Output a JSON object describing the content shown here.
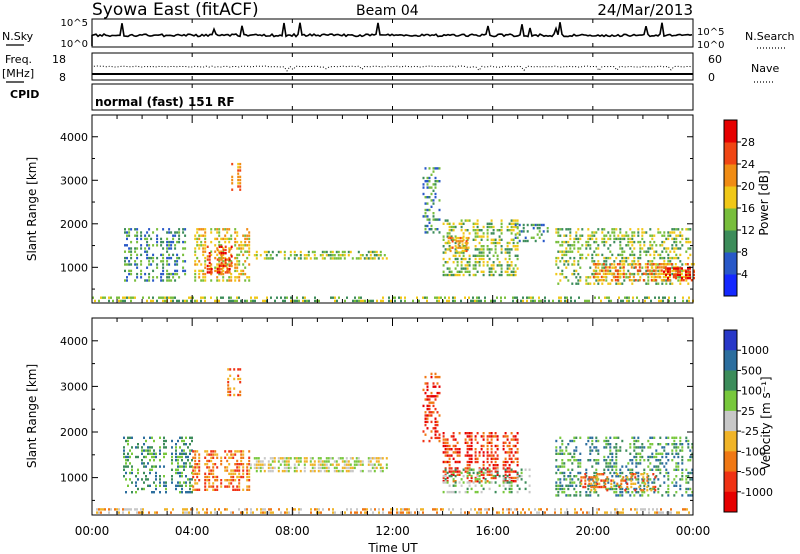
{
  "header": {
    "station": "Syowa East (fitACF)",
    "beam": "Beam 04",
    "date": "24/Mar/2013"
  },
  "status_panels": {
    "nsky_label": "N.Sky",
    "nsky_ticks": [
      "10^5",
      "10^0"
    ],
    "nsearch_label": "N.Search",
    "nsearch_ticks": [
      "10^5",
      "10^0"
    ],
    "freq_label": "Freq.",
    "freq_unit": "[MHz]",
    "freq_ticks": [
      "18",
      "8"
    ],
    "nave_label": "Nave",
    "nave_ticks": [
      "60",
      "0"
    ],
    "cpid_label": "CPID",
    "cpid_text": "normal (fast) 151 RF"
  },
  "x_axis": {
    "label": "Time UT",
    "ticks": [
      "00:00",
      "04:00",
      "08:00",
      "12:00",
      "16:00",
      "20:00",
      "00:00"
    ]
  },
  "chart_data": [
    {
      "type": "heatmap",
      "panel": "power",
      "ylabel": "Slant Range [km]",
      "yticks": [
        1000,
        2000,
        3000,
        4000
      ],
      "ylim": [
        180,
        4500
      ],
      "xlim": [
        0,
        24
      ],
      "colorbar": {
        "label": "Power [dB]",
        "ticks": [
          "4",
          "8",
          "12",
          "16",
          "20",
          "24",
          "28"
        ],
        "colors": [
          "#1428ff",
          "#2858c8",
          "#3c8c5a",
          "#78be3c",
          "#f0c818",
          "#f08c14",
          "#f04614",
          "#e60000"
        ]
      },
      "regions": [
        {
          "t0": 0.0,
          "t1": 24.0,
          "r0": 190,
          "r1": 330,
          "level": 3,
          "density": 0.55
        },
        {
          "t0": 1.2,
          "t1": 3.8,
          "r0": 700,
          "r1": 1900,
          "level": 2,
          "density": 0.45
        },
        {
          "t0": 4.0,
          "t1": 6.3,
          "r0": 700,
          "r1": 1900,
          "level": 4,
          "density": 0.55
        },
        {
          "t0": 4.5,
          "t1": 5.6,
          "r0": 900,
          "r1": 1500,
          "level": 6,
          "density": 0.6
        },
        {
          "t0": 5.4,
          "t1": 5.9,
          "r0": 2800,
          "r1": 3400,
          "level": 5,
          "density": 0.7
        },
        {
          "t0": 6.3,
          "t1": 11.8,
          "r0": 1180,
          "r1": 1380,
          "level": 3,
          "density": 0.6
        },
        {
          "t0": 13.2,
          "t1": 13.9,
          "r0": 1800,
          "r1": 3300,
          "level": 2,
          "density": 0.3
        },
        {
          "t0": 14.0,
          "t1": 17.0,
          "r0": 800,
          "r1": 2100,
          "level": 3,
          "density": 0.5
        },
        {
          "t0": 14.2,
          "t1": 15.0,
          "r0": 1400,
          "r1": 1700,
          "level": 5,
          "density": 0.55
        },
        {
          "t0": 16.8,
          "t1": 18.3,
          "r0": 1600,
          "r1": 2000,
          "level": 2,
          "density": 0.35
        },
        {
          "t0": 18.5,
          "t1": 24.0,
          "r0": 600,
          "r1": 1900,
          "level": 3,
          "density": 0.45
        },
        {
          "t0": 20.0,
          "t1": 24.0,
          "r0": 700,
          "r1": 1100,
          "level": 5,
          "density": 0.5
        },
        {
          "t0": 22.8,
          "t1": 24.0,
          "r0": 750,
          "r1": 1000,
          "level": 7,
          "density": 0.6
        }
      ]
    },
    {
      "type": "heatmap",
      "panel": "velocity",
      "ylabel": "Slant Range [km]",
      "yticks": [
        1000,
        2000,
        3000,
        4000
      ],
      "ylim": [
        180,
        4500
      ],
      "xlim": [
        0,
        24
      ],
      "colorbar": {
        "label": "Velocity [m s⁻¹]",
        "ticks": [
          "1000",
          "500",
          "100",
          "25",
          "-25",
          "-100",
          "-500",
          "-1000"
        ],
        "colors": [
          "#2838c8",
          "#2c6e9e",
          "#3c8c5a",
          "#78c83c",
          "#c8c8c8",
          "#f0b428",
          "#f07814",
          "#f03214",
          "#e60000"
        ]
      },
      "regions": [
        {
          "t0": 0.0,
          "t1": 24.0,
          "r0": 190,
          "r1": 330,
          "level": 5,
          "density": 0.5
        },
        {
          "t0": 1.0,
          "t1": 4.0,
          "r0": 700,
          "r1": 1900,
          "level": 2,
          "density": 0.45
        },
        {
          "t0": 4.0,
          "t1": 6.3,
          "r0": 700,
          "r1": 1600,
          "level": 6,
          "density": 0.6
        },
        {
          "t0": 5.4,
          "t1": 5.9,
          "r0": 2800,
          "r1": 3400,
          "level": 6,
          "density": 0.6
        },
        {
          "t0": 6.3,
          "t1": 11.8,
          "r0": 1150,
          "r1": 1450,
          "level": 4,
          "density": 0.7
        },
        {
          "t0": 13.2,
          "t1": 13.9,
          "r0": 1800,
          "r1": 3300,
          "level": 7,
          "density": 0.35
        },
        {
          "t0": 14.0,
          "t1": 17.0,
          "r0": 900,
          "r1": 2000,
          "level": 7,
          "density": 0.55
        },
        {
          "t0": 14.0,
          "t1": 17.5,
          "r0": 700,
          "r1": 1200,
          "level": 3,
          "density": 0.4
        },
        {
          "t0": 18.5,
          "t1": 24.0,
          "r0": 600,
          "r1": 1900,
          "level": 2,
          "density": 0.45
        },
        {
          "t0": 19.5,
          "t1": 22.5,
          "r0": 700,
          "r1": 1100,
          "level": 6,
          "density": 0.45
        }
      ]
    }
  ]
}
